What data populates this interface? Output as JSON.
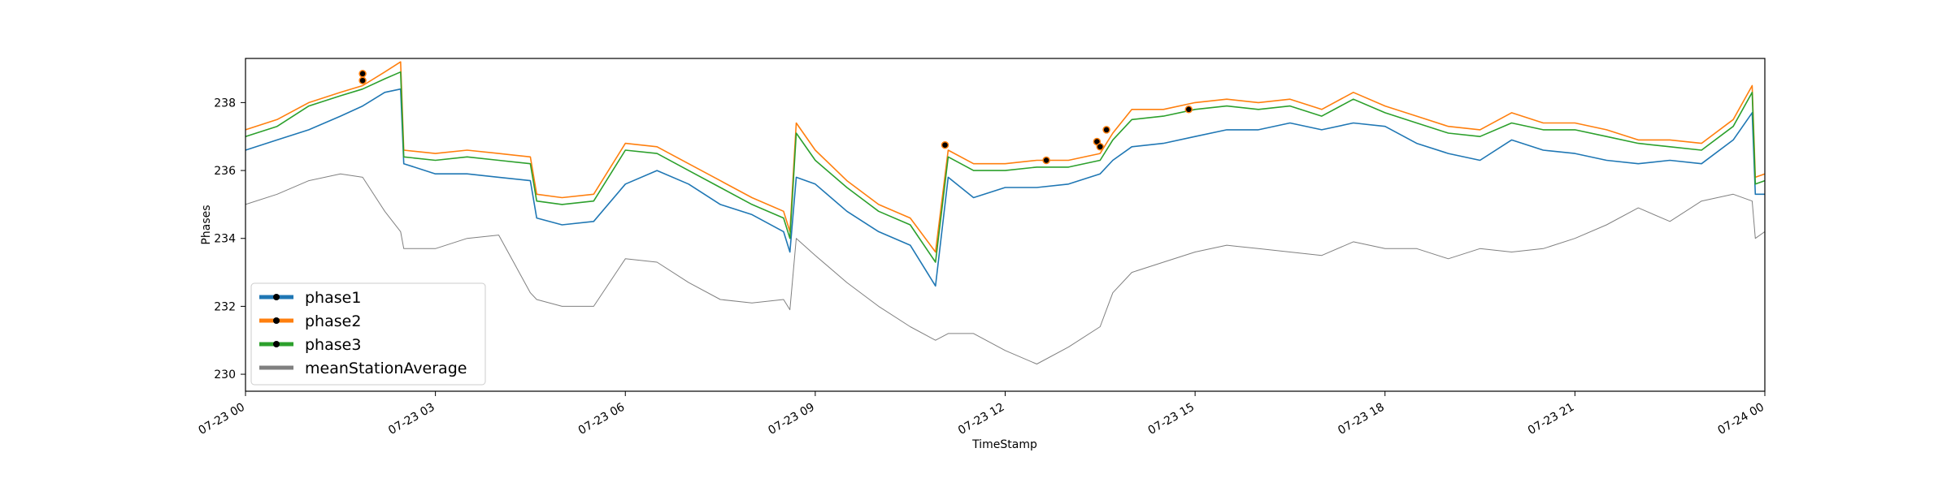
{
  "chart_data": {
    "type": "line",
    "title": "",
    "xlabel": "TimeStamp",
    "ylabel": "Phases",
    "xlim": [
      "07-23 00",
      "07-24 00"
    ],
    "ylim": [
      229.5,
      239.3
    ],
    "x_ticks": [
      "07-23 00",
      "07-23 03",
      "07-23 06",
      "07-23 09",
      "07-23 12",
      "07-23 15",
      "07-23 18",
      "07-23 21",
      "07-24 00"
    ],
    "y_ticks": [
      "230",
      "232",
      "234",
      "236",
      "238"
    ],
    "grid": false,
    "legend_position": "lower-left",
    "x_hours": [
      0.0,
      0.5,
      1.0,
      1.5,
      1.85,
      2.2,
      2.45,
      2.5,
      3.0,
      3.5,
      4.0,
      4.5,
      4.6,
      5.0,
      5.5,
      6.0,
      6.5,
      7.0,
      7.5,
      8.0,
      8.5,
      8.6,
      8.7,
      9.0,
      9.5,
      10.0,
      10.5,
      10.9,
      11.1,
      11.5,
      12.0,
      12.5,
      13.0,
      13.5,
      13.7,
      14.0,
      14.5,
      15.0,
      15.5,
      16.0,
      16.5,
      17.0,
      17.5,
      18.0,
      18.5,
      19.0,
      19.5,
      20.0,
      20.5,
      21.0,
      21.5,
      22.0,
      22.5,
      23.0,
      23.5,
      23.8,
      23.85,
      24.0
    ],
    "series": [
      {
        "name": "phase1",
        "color": "#1f77b4",
        "values": [
          236.6,
          236.9,
          237.2,
          237.6,
          237.9,
          238.3,
          238.4,
          236.2,
          235.9,
          235.9,
          235.8,
          235.7,
          234.6,
          234.4,
          234.5,
          235.6,
          236.0,
          235.6,
          235.0,
          234.7,
          234.2,
          233.6,
          235.8,
          235.6,
          234.8,
          234.2,
          233.8,
          232.6,
          235.8,
          235.2,
          235.5,
          235.5,
          235.6,
          235.9,
          236.3,
          236.7,
          236.8,
          237.0,
          237.2,
          237.2,
          237.4,
          237.2,
          237.4,
          237.3,
          236.8,
          236.5,
          236.3,
          236.9,
          236.6,
          236.5,
          236.3,
          236.2,
          236.3,
          236.2,
          236.9,
          237.7,
          235.3,
          235.3
        ]
      },
      {
        "name": "phase2",
        "color": "#ff7f0e",
        "values": [
          237.2,
          237.5,
          238.0,
          238.3,
          238.5,
          238.9,
          239.2,
          236.6,
          236.5,
          236.6,
          236.5,
          236.4,
          235.3,
          235.2,
          235.3,
          236.8,
          236.7,
          236.2,
          235.7,
          235.2,
          234.8,
          234.2,
          237.4,
          236.6,
          235.7,
          235.0,
          234.6,
          233.6,
          236.6,
          236.2,
          236.2,
          236.3,
          236.3,
          236.5,
          237.1,
          237.8,
          237.8,
          238.0,
          238.1,
          238.0,
          238.1,
          237.8,
          238.3,
          237.9,
          237.6,
          237.3,
          237.2,
          237.7,
          237.4,
          237.4,
          237.2,
          236.9,
          236.9,
          236.8,
          237.5,
          238.5,
          235.8,
          235.9
        ]
      },
      {
        "name": "phase3",
        "color": "#2ca02c",
        "values": [
          237.0,
          237.3,
          237.9,
          238.2,
          238.4,
          238.7,
          238.9,
          236.4,
          236.3,
          236.4,
          236.3,
          236.2,
          235.1,
          235.0,
          235.1,
          236.6,
          236.5,
          236.0,
          235.5,
          235.0,
          234.6,
          234.0,
          237.1,
          236.3,
          235.5,
          234.8,
          234.4,
          233.3,
          236.4,
          236.0,
          236.0,
          236.1,
          236.1,
          236.3,
          236.9,
          237.5,
          237.6,
          237.8,
          237.9,
          237.8,
          237.9,
          237.6,
          238.1,
          237.7,
          237.4,
          237.1,
          237.0,
          237.4,
          237.2,
          237.2,
          237.0,
          236.8,
          236.7,
          236.6,
          237.3,
          238.3,
          235.6,
          235.7
        ]
      },
      {
        "name": "meanStationAverage",
        "color": "#808080",
        "values": [
          235.0,
          235.3,
          235.7,
          235.9,
          235.8,
          234.8,
          234.2,
          233.7,
          233.7,
          234.0,
          234.1,
          232.4,
          232.2,
          232.0,
          232.0,
          233.4,
          233.3,
          232.7,
          232.2,
          232.1,
          232.2,
          231.9,
          234.0,
          233.5,
          232.7,
          232.0,
          231.4,
          231.0,
          231.2,
          231.2,
          230.7,
          230.3,
          230.8,
          231.4,
          232.4,
          233.0,
          233.3,
          233.6,
          233.8,
          233.7,
          233.6,
          233.5,
          233.9,
          233.7,
          233.7,
          233.4,
          233.7,
          233.6,
          233.7,
          234.0,
          234.4,
          234.9,
          234.5,
          235.1,
          235.3,
          235.1,
          234.0,
          234.2
        ]
      }
    ],
    "markers": [
      {
        "x": 1.85,
        "y": 238.85
      },
      {
        "x": 1.85,
        "y": 238.65
      },
      {
        "x": 11.05,
        "y": 236.75
      },
      {
        "x": 12.65,
        "y": 236.3
      },
      {
        "x": 13.45,
        "y": 236.85
      },
      {
        "x": 13.5,
        "y": 236.7
      },
      {
        "x": 13.6,
        "y": 237.2
      },
      {
        "x": 14.9,
        "y": 237.8
      }
    ]
  }
}
